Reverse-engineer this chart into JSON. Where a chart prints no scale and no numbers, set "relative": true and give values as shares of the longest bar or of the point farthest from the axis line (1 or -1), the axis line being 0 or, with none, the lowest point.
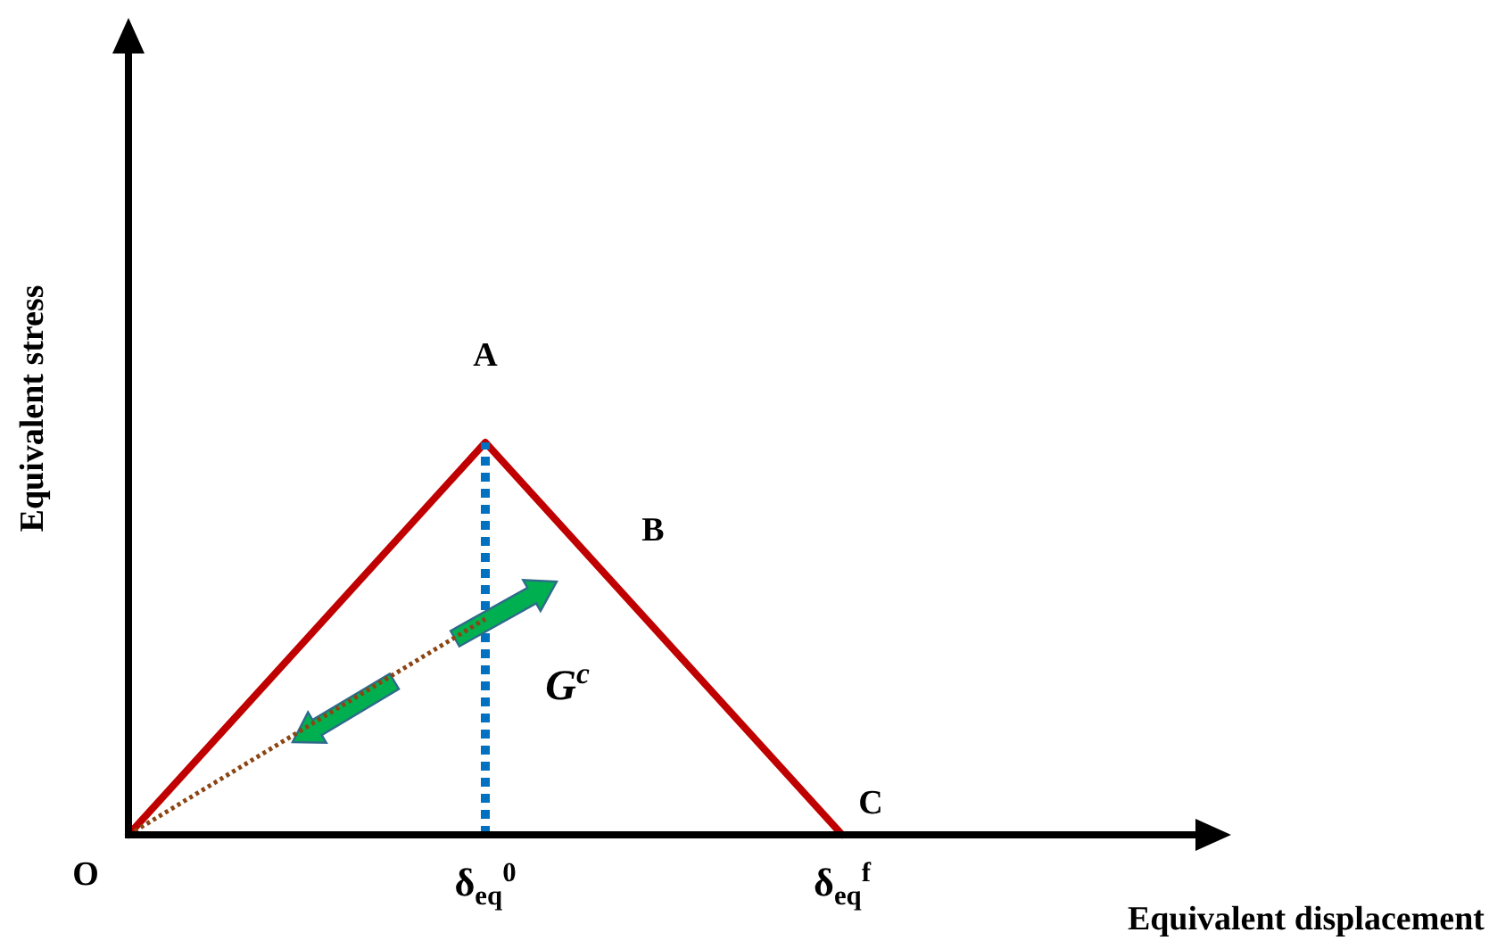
{
  "chart_data": {
    "type": "line",
    "relative": true,
    "xlabel": "Equivalent displacement",
    "ylabel": "Equivalent stress",
    "categories": [
      null,
      "δ$_{eq}$$^{0}$",
      "δ$_{eq}$$^{f}$"
    ],
    "series": [
      {
        "color": "#c00000",
        "values": [
          0,
          1,
          0
        ],
        "line_style": "solid"
      },
      {
        "color": "#8b4513",
        "values": [
          0,
          0.55,
          null
        ],
        "line_style": "dotted"
      },
      {
        "color": "#0070c0",
        "x": [
          "δ$_{eq}$$^{0}$",
          "δ$_{eq}$$^{0}$"
        ],
        "values": [
          0,
          1
        ],
        "line_style": "dotted"
      }
    ],
    "annotations": [
      "A",
      "B",
      "C",
      "O",
      "G$^{c}$"
    ]
  }
}
